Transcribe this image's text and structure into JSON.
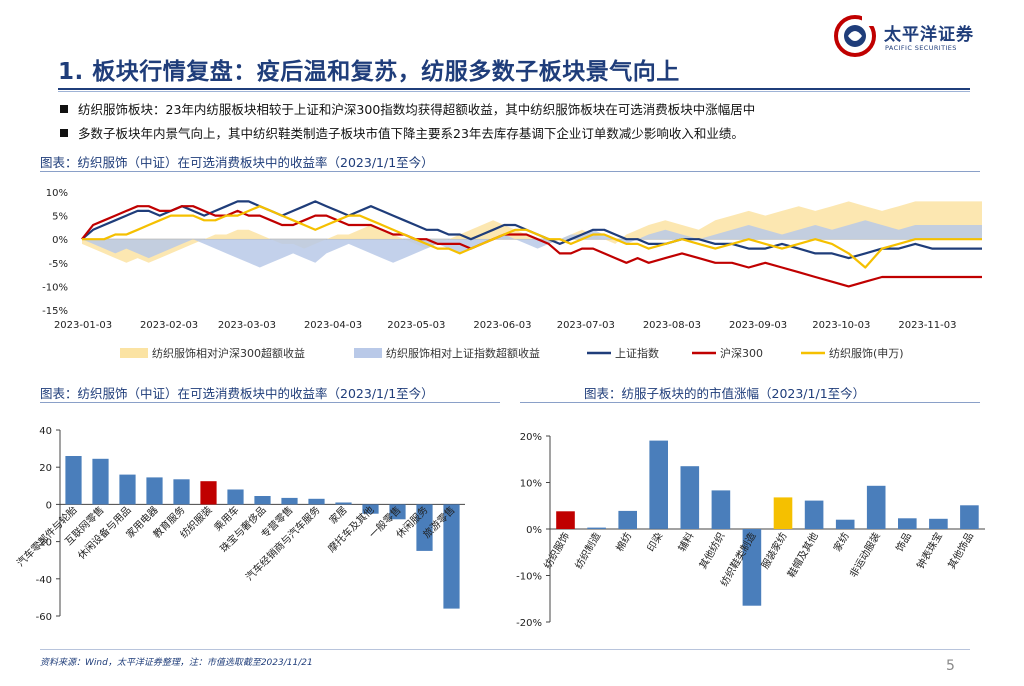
{
  "header": {
    "title": "1. 板块行情复盘：疫后温和复苏，纺服多数子板块景气向上",
    "logo_cn": "太平洋证券",
    "logo_en": "PACIFIC SECURITIES"
  },
  "bullets": [
    "纺织服饰板块：23年内纺服板块相较于上证和沪深300指数均获得超额收益，其中纺织服饰板块在可选消费板块中涨幅居中",
    "多数子板块年内景气向上，其中纺织鞋类制造子板块市值下降主要系23年去库存基调下企业订单数减少影响收入和业绩。"
  ],
  "captions": {
    "chart1": "图表：纺织服饰（中证）在可选消费板块中的收益率（2023/1/1至今）",
    "chart2": "图表：纺织服饰（中证）在可选消费板块中的收益率（2023/1/1至今）",
    "chart3": "图表：纺服子板块的的市值涨幅（2023/1/1至今）"
  },
  "footer": {
    "source": "资料来源：Wind，太平洋证券整理，注：市值选取截至2023/11/21",
    "page": "5"
  },
  "colors": {
    "navy": "#1f3d7a",
    "red": "#c00000",
    "gold": "#f5c000",
    "blue": "#4a7ebb",
    "area_gold": "#fbe3a3",
    "area_blue": "#b9c9e8"
  },
  "chart_data": [
    {
      "type": "line",
      "title": "纺织服饰（中证）在可选消费板块中的收益率（2023/1/1至今）",
      "x_ticks": [
        "2023-01-03",
        "2023-02-03",
        "2023-03-03",
        "2023-04-03",
        "2023-05-03",
        "2023-06-03",
        "2023-07-03",
        "2023-08-03",
        "2023-09-03",
        "2023-10-03",
        "2023-11-03"
      ],
      "y_ticks": [
        "10%",
        "5%",
        "0%",
        "-5%",
        "-10%",
        "-15%"
      ],
      "ylim": [
        -15,
        10
      ],
      "x_index": [
        0,
        4,
        8,
        12,
        16,
        20,
        24,
        28,
        32,
        36,
        40,
        44,
        48,
        52,
        56,
        60,
        64,
        68,
        72,
        76,
        80,
        84,
        88,
        92,
        96,
        100,
        104,
        108,
        112,
        116,
        120,
        124,
        128,
        132,
        136,
        140,
        144,
        148,
        152,
        156,
        160,
        164,
        168,
        172,
        176,
        180,
        184,
        188,
        192,
        196,
        200,
        204,
        210,
        216,
        222,
        228,
        234,
        240,
        246,
        252,
        258,
        264,
        270,
        276,
        282,
        288,
        294,
        300,
        306,
        312,
        318,
        324
      ],
      "series": [
        {
          "name": "纺织服饰相对沪深300超额收益",
          "kind": "area",
          "values": [
            -1,
            -2,
            -3,
            -4,
            -5,
            -4,
            -5,
            -4,
            -3,
            -2,
            -1,
            0,
            1,
            1,
            2,
            2,
            1,
            0,
            -1,
            -1,
            -2,
            -1,
            0,
            1,
            1,
            2,
            3,
            2,
            1,
            0,
            -1,
            -2,
            -1,
            0,
            1,
            2,
            3,
            4,
            3,
            2,
            1,
            0,
            -1,
            0,
            1,
            2,
            1,
            0,
            -1,
            1,
            2,
            3,
            4,
            3,
            2,
            4,
            5,
            6,
            5,
            6,
            7,
            6,
            7,
            8,
            7,
            6,
            7,
            8,
            8,
            8,
            8,
            8
          ]
        },
        {
          "name": "纺织服饰相对上证指数超额收益",
          "kind": "area",
          "values": [
            0,
            -1,
            -2,
            -3,
            -2,
            -3,
            -4,
            -3,
            -2,
            -1,
            0,
            -1,
            -2,
            -3,
            -4,
            -5,
            -6,
            -5,
            -4,
            -3,
            -4,
            -5,
            -3,
            -2,
            -1,
            -2,
            -3,
            -4,
            -5,
            -4,
            -3,
            -2,
            -1,
            -2,
            -3,
            -2,
            -1,
            0,
            1,
            0,
            -1,
            -2,
            -1,
            0,
            1,
            1,
            2,
            1,
            0,
            -1,
            0,
            1,
            2,
            1,
            0,
            1,
            2,
            3,
            2,
            1,
            2,
            3,
            2,
            3,
            4,
            3,
            2,
            3,
            3,
            3,
            3,
            3
          ]
        },
        {
          "name": "上证指数",
          "kind": "line",
          "color": "#1f3d7a",
          "values": [
            0,
            2,
            3,
            4,
            5,
            6,
            6,
            5,
            6,
            7,
            6,
            5,
            6,
            7,
            8,
            8,
            7,
            6,
            5,
            6,
            7,
            8,
            7,
            6,
            5,
            6,
            7,
            6,
            5,
            4,
            3,
            2,
            2,
            1,
            1,
            0,
            1,
            2,
            3,
            3,
            2,
            1,
            0,
            -1,
            0,
            1,
            2,
            2,
            1,
            0,
            0,
            -1,
            -1,
            0,
            0,
            -1,
            -1,
            -2,
            -2,
            -1,
            -2,
            -3,
            -3,
            -4,
            -3,
            -2,
            -2,
            -1,
            -2,
            -2,
            -2,
            -2
          ]
        },
        {
          "name": "沪深300",
          "kind": "line",
          "color": "#c00000",
          "values": [
            0,
            3,
            4,
            5,
            6,
            7,
            7,
            6,
            6,
            7,
            7,
            6,
            5,
            5,
            6,
            5,
            5,
            4,
            3,
            3,
            4,
            5,
            5,
            4,
            3,
            3,
            3,
            2,
            1,
            1,
            0,
            0,
            -1,
            -1,
            -1,
            -2,
            -1,
            0,
            1,
            1,
            1,
            0,
            -1,
            -3,
            -3,
            -2,
            -2,
            -3,
            -4,
            -5,
            -4,
            -5,
            -4,
            -3,
            -4,
            -5,
            -5,
            -6,
            -5,
            -6,
            -7,
            -8,
            -9,
            -10,
            -9,
            -8,
            -8,
            -8,
            -8,
            -8,
            -8,
            -8
          ]
        },
        {
          "name": "纺织服饰(申万)",
          "kind": "line",
          "color": "#f5c000",
          "values": [
            0,
            0,
            0,
            1,
            1,
            2,
            3,
            4,
            5,
            5,
            5,
            4,
            4,
            5,
            5,
            6,
            7,
            6,
            5,
            4,
            3,
            2,
            3,
            4,
            5,
            5,
            4,
            3,
            2,
            1,
            0,
            -1,
            -2,
            -2,
            -3,
            -2,
            -1,
            0,
            1,
            2,
            2,
            1,
            0,
            0,
            -1,
            0,
            1,
            1,
            0,
            -1,
            -1,
            -2,
            -1,
            0,
            -1,
            -2,
            -1,
            0,
            -1,
            -2,
            -1,
            0,
            -1,
            -3,
            -6,
            -2,
            -1,
            0,
            0,
            0,
            0,
            0
          ]
        }
      ],
      "legend": [
        "纺织服饰相对沪深300超额收益",
        "纺织服饰相对上证指数超额收益",
        "上证指数",
        "沪深300",
        "纺织服饰(申万)"
      ],
      "legend_position": "bottom"
    },
    {
      "type": "bar",
      "title": "纺织服饰（中证）在可选消费板块中的收益率（2023/1/1至今）",
      "categories": [
        "汽车零部件与轮胎",
        "互联网零售",
        "休闲设备与用品",
        "家用电器",
        "教育服务",
        "纺织服装",
        "乘用车",
        "珠宝与奢侈品",
        "专营零售",
        "汽车经销商与汽车服务",
        "家居",
        "摩托车及其他",
        "一般零售",
        "休闲服务",
        "旅游零售"
      ],
      "values": [
        26,
        24.5,
        16,
        14.5,
        13.5,
        12.5,
        8,
        4.5,
        3.5,
        3,
        1,
        -5,
        -8,
        -25,
        -56
      ],
      "highlight": "纺织服装",
      "highlight_color": "#c00000",
      "bar_color": "#4a7ebb",
      "ylim": [
        -60,
        40
      ],
      "y_ticks": [
        "40",
        "20",
        "0",
        "-20",
        "-40",
        "-60"
      ]
    },
    {
      "type": "bar",
      "title": "纺服子板块的的市值涨幅（2023/1/1至今）",
      "categories": [
        "纺织服饰",
        "纺织制造",
        "棉纺",
        "印染",
        "辅料",
        "其他纺织",
        "纺织鞋类制造",
        "服装家纺",
        "鞋帽及其他",
        "家纺",
        "非运动服装",
        "饰品",
        "钟表珠宝",
        "其他饰品"
      ],
      "values": [
        3.8,
        0.3,
        3.9,
        19,
        13.5,
        8.3,
        -16.5,
        6.8,
        6.1,
        2,
        9.3,
        2.3,
        2.2,
        5.1
      ],
      "highlights": {
        "纺织服饰": "#c00000",
        "服装家纺": "#f5c000"
      },
      "bar_color": "#4a7ebb",
      "ylim": [
        -20,
        20
      ],
      "y_ticks": [
        "20%",
        "10%",
        "0%",
        "-10%",
        "-20%"
      ]
    }
  ]
}
